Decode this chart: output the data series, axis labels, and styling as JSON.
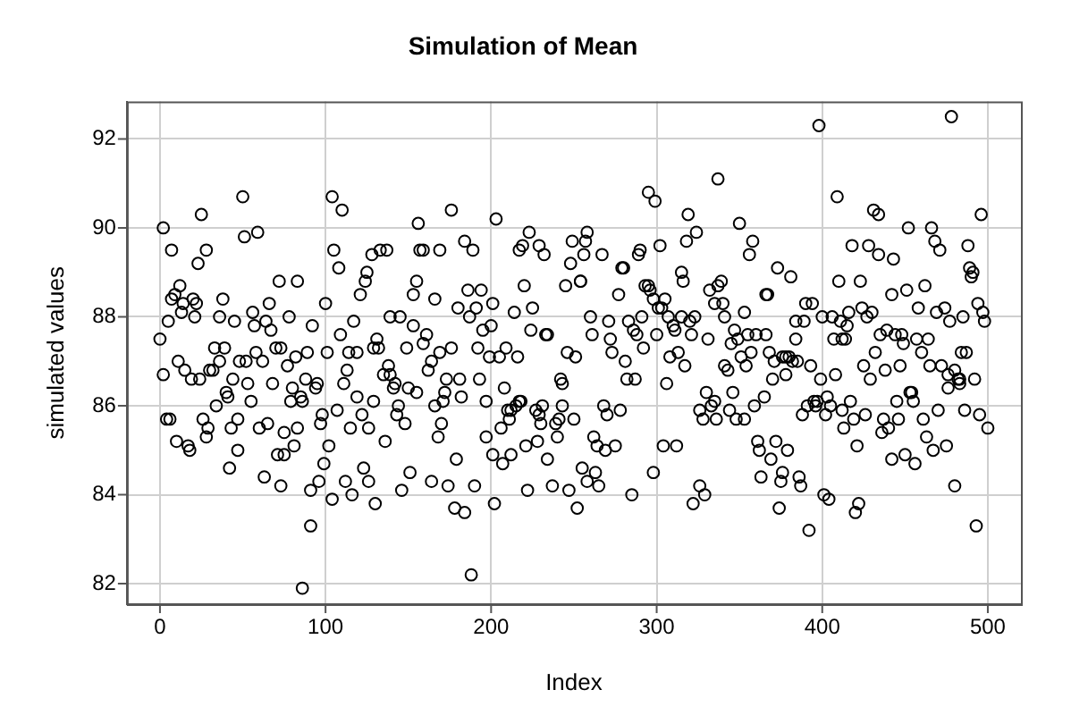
{
  "chart_data": {
    "type": "scatter",
    "title": "Simulation of Mean",
    "xlabel": "Index",
    "ylabel": "simulated values",
    "xlim": [
      -20,
      520
    ],
    "xticks": [
      0,
      100,
      200,
      300,
      400,
      500
    ],
    "ylim": [
      81.54,
      92.84
    ],
    "yticks": [
      82,
      84,
      86,
      88,
      90,
      92
    ],
    "grid": true,
    "marker": "circle",
    "legend": false,
    "series": [
      {
        "color": "#000000",
        "x": [
          0,
          2,
          2,
          4,
          6,
          5,
          7,
          7,
          9,
          10,
          11,
          12,
          13,
          14,
          15,
          17,
          18,
          19,
          20,
          21,
          22,
          23,
          24,
          25,
          26,
          28,
          28,
          29,
          30,
          32,
          33,
          34,
          36,
          36,
          38,
          39,
          40,
          41,
          42,
          43,
          44,
          45,
          47,
          47,
          48,
          50,
          51,
          52,
          53,
          55,
          56,
          57,
          58,
          59,
          60,
          62,
          63,
          64,
          65,
          66,
          67,
          68,
          70,
          71,
          72,
          73,
          73,
          75,
          75,
          77,
          78,
          79,
          80,
          81,
          82,
          83,
          83,
          85,
          86,
          86,
          88,
          89,
          91,
          91,
          92,
          94,
          95,
          96,
          97,
          98,
          99,
          100,
          101,
          102,
          104,
          104,
          105,
          107,
          108,
          109,
          110,
          111,
          112,
          113,
          114,
          115,
          116,
          117,
          119,
          119,
          121,
          122,
          123,
          124,
          125,
          126,
          126,
          128,
          129,
          129,
          130,
          131,
          132,
          133,
          135,
          136,
          137,
          138,
          139,
          139,
          141,
          142,
          143,
          144,
          145,
          146,
          148,
          149,
          150,
          151,
          153,
          153,
          155,
          155,
          156,
          157,
          159,
          159,
          161,
          162,
          164,
          164,
          166,
          166,
          168,
          169,
          169,
          170,
          171,
          172,
          173,
          174,
          176,
          176,
          178,
          179,
          180,
          181,
          182,
          184,
          184,
          186,
          187,
          188,
          189,
          190,
          191,
          192,
          193,
          194,
          195,
          197,
          197,
          199,
          200,
          201,
          201,
          202,
          203,
          205,
          206,
          207,
          208,
          209,
          210,
          211,
          212,
          212,
          214,
          215,
          216,
          217,
          217,
          218,
          219,
          220,
          221,
          222,
          223,
          224,
          225,
          227,
          228,
          229,
          229,
          230,
          231,
          232,
          233,
          234,
          234,
          237,
          239,
          240,
          241,
          243,
          243,
          242,
          245,
          246,
          247,
          248,
          249,
          250,
          251,
          252,
          254,
          254,
          255,
          256,
          257,
          258,
          258,
          260,
          261,
          263,
          262,
          264,
          265,
          267,
          268,
          269,
          270,
          271,
          272,
          273,
          275,
          277,
          278,
          279,
          280,
          281,
          282,
          283,
          285,
          286,
          287,
          288,
          289,
          290,
          291,
          292,
          293,
          295,
          295,
          296,
          298,
          298,
          299,
          300,
          301,
          302,
          303,
          304,
          305,
          306,
          307,
          308,
          310,
          311,
          312,
          313,
          315,
          315,
          316,
          317,
          318,
          319,
          320,
          321,
          322,
          323,
          324,
          326,
          326,
          328,
          329,
          330,
          331,
          332,
          333,
          335,
          335,
          336,
          337,
          337,
          339,
          340,
          341,
          341,
          343,
          344,
          345,
          346,
          347,
          348,
          349,
          350,
          351,
          353,
          353,
          354,
          355,
          356,
          357,
          358,
          359,
          360,
          361,
          362,
          363,
          365,
          366,
          366,
          367,
          368,
          369,
          370,
          371,
          372,
          373,
          374,
          375,
          376,
          376,
          378,
          378,
          379,
          380,
          381,
          382,
          384,
          384,
          385,
          386,
          387,
          388,
          389,
          390,
          391,
          392,
          393,
          394,
          395,
          396,
          397,
          398,
          399,
          400,
          401,
          402,
          403,
          404,
          405,
          406,
          407,
          408,
          409,
          410,
          411,
          412,
          412,
          413,
          414,
          415,
          416,
          417,
          418,
          419,
          420,
          421,
          422,
          423,
          424,
          425,
          426,
          427,
          428,
          429,
          430,
          431,
          432,
          434,
          434,
          435,
          436,
          437,
          438,
          439,
          440,
          442,
          442,
          443,
          444,
          445,
          446,
          447,
          448,
          449,
          450,
          451,
          452,
          453,
          454,
          455,
          456,
          457,
          458,
          460,
          461,
          462,
          463,
          464,
          465,
          466,
          467,
          468,
          469,
          470,
          471,
          472,
          474,
          475,
          476,
          476,
          477,
          478,
          480,
          480,
          482,
          483,
          483,
          484,
          485,
          486,
          487,
          488,
          489,
          490,
          491,
          492,
          493,
          494,
          495,
          496,
          497,
          498,
          500
        ],
        "values": [
          87.5,
          86.7,
          90.0,
          85.7,
          85.7,
          87.9,
          89.5,
          88.4,
          88.5,
          85.2,
          87.0,
          88.7,
          88.1,
          88.3,
          86.8,
          85.1,
          85.0,
          86.6,
          88.4,
          88.0,
          88.3,
          89.2,
          86.6,
          90.3,
          85.7,
          89.5,
          85.3,
          85.5,
          86.8,
          86.8,
          87.3,
          86.0,
          87.0,
          88.0,
          88.4,
          87.3,
          86.3,
          86.2,
          84.6,
          85.5,
          86.6,
          87.9,
          85.7,
          85.0,
          87.0,
          90.7,
          89.8,
          87.0,
          86.5,
          86.1,
          88.1,
          87.8,
          87.2,
          89.9,
          85.5,
          87.0,
          84.4,
          87.9,
          85.6,
          88.3,
          87.7,
          86.5,
          87.3,
          84.9,
          88.8,
          84.2,
          87.3,
          84.9,
          85.4,
          86.9,
          88.0,
          86.1,
          86.4,
          85.1,
          87.1,
          88.8,
          85.5,
          86.2,
          86.1,
          81.9,
          86.6,
          87.2,
          83.3,
          84.1,
          87.8,
          86.4,
          86.5,
          84.3,
          85.6,
          85.8,
          84.7,
          88.3,
          87.2,
          85.1,
          83.9,
          90.7,
          89.5,
          85.9,
          89.1,
          87.6,
          90.4,
          86.5,
          84.3,
          86.8,
          87.2,
          85.5,
          84.0,
          87.9,
          87.2,
          86.2,
          88.5,
          85.8,
          84.6,
          88.8,
          89.0,
          85.5,
          84.3,
          89.4,
          86.1,
          87.3,
          83.8,
          87.5,
          87.3,
          89.5,
          86.7,
          85.2,
          89.5,
          86.9,
          88.0,
          86.7,
          86.4,
          86.5,
          85.8,
          86.0,
          88.0,
          84.1,
          85.6,
          87.3,
          86.4,
          84.5,
          88.5,
          87.8,
          86.3,
          88.8,
          90.1,
          89.5,
          89.5,
          87.4,
          87.6,
          86.8,
          84.3,
          87.0,
          88.4,
          86.0,
          85.3,
          89.5,
          87.2,
          85.6,
          86.1,
          86.3,
          86.6,
          84.2,
          87.3,
          90.4,
          83.7,
          84.8,
          88.2,
          86.6,
          86.2,
          83.6,
          89.7,
          88.6,
          88.0,
          82.2,
          89.5,
          84.2,
          88.2,
          87.3,
          86.6,
          88.6,
          87.7,
          85.3,
          86.1,
          87.1,
          87.8,
          84.9,
          88.3,
          83.8,
          90.2,
          87.1,
          85.5,
          84.7,
          86.4,
          87.3,
          85.9,
          85.7,
          84.9,
          85.9,
          88.1,
          86.0,
          87.1,
          86.1,
          89.5,
          86.1,
          89.6,
          88.7,
          85.1,
          84.1,
          89.9,
          87.7,
          88.2,
          85.9,
          85.2,
          89.6,
          85.8,
          85.6,
          86.0,
          89.4,
          87.6,
          84.8,
          87.6,
          84.2,
          85.6,
          85.3,
          85.7,
          86.0,
          86.5,
          86.6,
          88.7,
          87.2,
          84.1,
          89.2,
          89.7,
          85.7,
          87.1,
          83.7,
          88.8,
          88.8,
          84.6,
          89.4,
          89.7,
          89.9,
          84.3,
          88.0,
          87.6,
          84.5,
          85.3,
          85.1,
          84.2,
          89.4,
          86.0,
          85.0,
          85.8,
          87.9,
          87.5,
          87.2,
          85.1,
          88.5,
          85.9,
          89.1,
          89.1,
          87.0,
          86.6,
          87.9,
          84.0,
          87.7,
          86.6,
          87.6,
          89.4,
          89.5,
          88.0,
          87.3,
          88.7,
          88.7,
          90.8,
          88.6,
          88.4,
          84.5,
          90.6,
          87.6,
          88.2,
          89.6,
          88.2,
          85.1,
          88.4,
          86.5,
          88.0,
          87.1,
          87.8,
          87.7,
          85.1,
          87.2,
          88.0,
          89.0,
          88.8,
          86.9,
          89.7,
          90.3,
          87.9,
          87.6,
          83.8,
          88.0,
          89.9,
          84.2,
          85.9,
          85.7,
          84.0,
          86.3,
          87.5,
          88.6,
          86.0,
          86.1,
          88.3,
          85.7,
          91.1,
          88.7,
          88.8,
          88.3,
          86.9,
          88.0,
          86.8,
          85.9,
          87.4,
          86.3,
          87.7,
          85.7,
          87.5,
          90.1,
          87.1,
          85.7,
          88.1,
          86.9,
          87.6,
          89.4,
          87.2,
          89.7,
          86.0,
          87.6,
          85.2,
          85.0,
          84.4,
          86.2,
          88.5,
          87.6,
          88.5,
          87.2,
          84.8,
          86.6,
          87.0,
          85.2,
          89.1,
          83.7,
          84.3,
          84.5,
          87.1,
          86.7,
          87.1,
          85.0,
          87.1,
          88.9,
          87.0,
          87.5,
          87.9,
          87.0,
          84.4,
          84.2,
          85.8,
          87.9,
          88.3,
          86.0,
          83.2,
          86.9,
          88.3,
          86.1,
          86.0,
          86.1,
          92.3,
          86.6,
          88.0,
          84.0,
          85.8,
          86.2,
          83.9,
          86.0,
          88.0,
          87.5,
          86.7,
          90.7,
          88.8,
          87.9,
          87.5,
          85.9,
          85.5,
          87.5,
          87.8,
          88.1,
          86.1,
          89.6,
          85.7,
          83.6,
          85.1,
          83.8,
          88.8,
          88.2,
          86.9,
          85.8,
          88.0,
          89.6,
          86.6,
          88.1,
          90.4,
          87.2,
          89.4,
          90.3,
          87.6,
          85.4,
          85.7,
          86.8,
          87.7,
          85.5,
          88.5,
          84.8,
          89.3,
          87.6,
          86.1,
          85.7,
          86.9,
          87.6,
          87.4,
          84.9,
          88.6,
          90.0,
          86.3,
          86.3,
          86.1,
          84.7,
          87.5,
          88.2,
          87.2,
          85.7,
          88.7,
          85.3,
          87.5,
          86.9,
          90.0,
          85.0,
          89.7,
          88.1,
          85.9,
          89.5,
          86.9,
          88.2,
          85.1,
          86.4,
          86.7,
          87.9,
          92.5,
          86.8,
          84.2,
          86.6,
          86.5,
          86.6,
          87.2,
          88.0,
          85.9,
          87.2,
          89.6,
          89.1,
          88.9,
          89.0,
          86.6,
          83.3,
          88.3,
          85.8,
          90.3,
          88.1,
          87.9,
          85.5
        ]
      }
    ]
  }
}
